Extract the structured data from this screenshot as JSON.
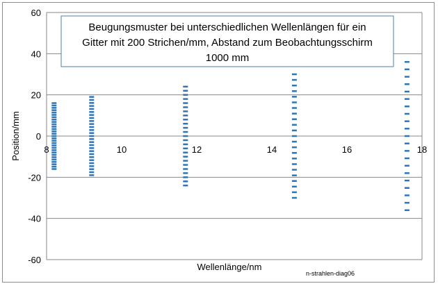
{
  "chart_data": {
    "type": "scatter",
    "title_lines": [
      "Beugungsmuster bei unterschiedlichen Wellenlängen für ein",
      "Gitter mit 200 Strichen/mm, Abstand zum Beobachtungsschirm",
      "1000 mm"
    ],
    "xlabel": "Wellenlänge/nm",
    "ylabel": "Position/mm",
    "xlim": [
      8,
      18
    ],
    "ylim": [
      -60,
      60
    ],
    "x_ticks": [
      "8",
      "10",
      "12",
      "14",
      "16",
      "18"
    ],
    "y_ticks": [
      "60",
      "40",
      "20",
      "0",
      "-20",
      "-40",
      "-60"
    ],
    "grid": "horizontal",
    "marker": "dash",
    "series_color": "#2e75b6",
    "series": [
      {
        "x": 8.2,
        "y_min": -16,
        "y_max": 16,
        "count": 29
      },
      {
        "x": 9.2,
        "y_min": -19,
        "y_max": 19,
        "count": 27
      },
      {
        "x": 11.7,
        "y_min": -24,
        "y_max": 24,
        "count": 25
      },
      {
        "x": 14.6,
        "y_min": -30,
        "y_max": 30,
        "count": 23
      },
      {
        "x": 17.6,
        "y_min": -36,
        "y_max": 36,
        "count": 21
      }
    ]
  },
  "credit": "n-strahlen-diag06"
}
